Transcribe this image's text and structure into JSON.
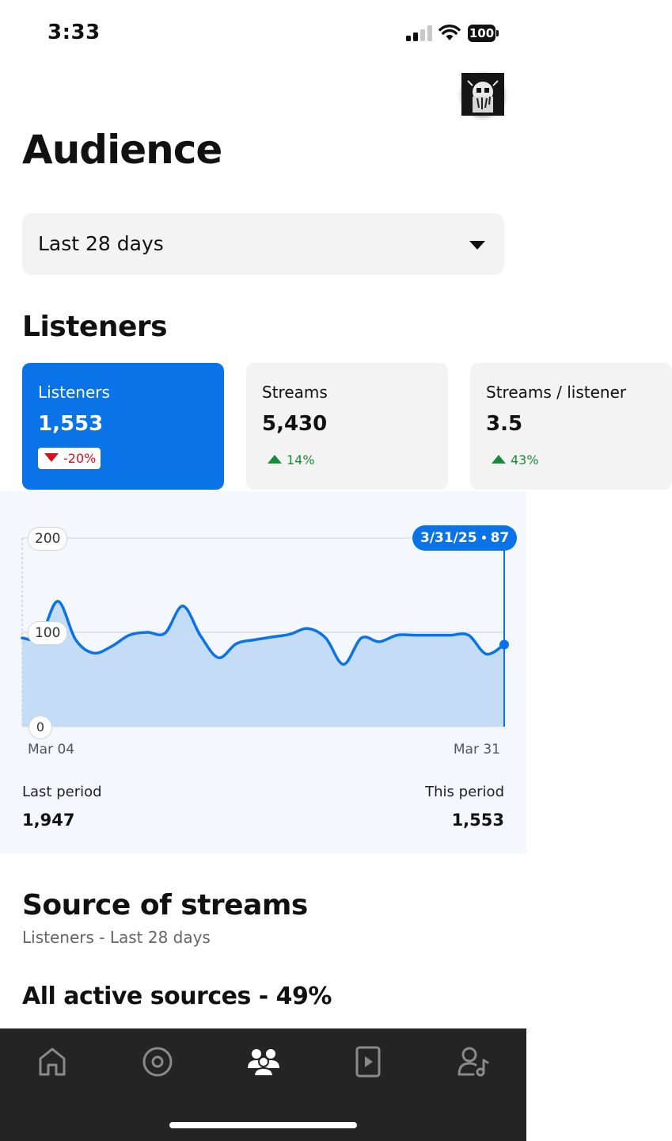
{
  "status_bar": {
    "time": "3:33",
    "battery": "100"
  },
  "header": {
    "title": "Audience",
    "avatar_icon": "profile-avatar-icon"
  },
  "period_select": {
    "value": "Last 28 days"
  },
  "listeners_section": {
    "title": "Listeners",
    "metrics": [
      {
        "label": "Listeners",
        "value": "1,553",
        "change": "-20%",
        "direction": "down",
        "active": true
      },
      {
        "label": "Streams",
        "value": "5,430",
        "change": "14%",
        "direction": "up",
        "active": false
      },
      {
        "label": "Streams / listener",
        "value": "3.5",
        "change": "43%",
        "direction": "up",
        "active": false
      }
    ]
  },
  "chart": {
    "tooltip_date": "3/31/25",
    "tooltip_value": "87",
    "y_ticks": [
      "200",
      "100",
      "0"
    ],
    "x_start": "Mar 04",
    "x_end": "Mar 31",
    "last_period_label": "Last period",
    "last_period_value": "1,947",
    "this_period_label": "This period",
    "this_period_value": "1,553",
    "colors": {
      "line": "#0a73e8",
      "fill": "#c5dcf6"
    }
  },
  "chart_data": {
    "type": "area",
    "x": [
      "Mar 04",
      "Mar 05",
      "Mar 06",
      "Mar 07",
      "Mar 08",
      "Mar 09",
      "Mar 10",
      "Mar 11",
      "Mar 12",
      "Mar 13",
      "Mar 14",
      "Mar 15",
      "Mar 16",
      "Mar 17",
      "Mar 18",
      "Mar 19",
      "Mar 20",
      "Mar 21",
      "Mar 22",
      "Mar 23",
      "Mar 24",
      "Mar 25",
      "Mar 26",
      "Mar 27",
      "Mar 28",
      "Mar 29",
      "Mar 30",
      "Mar 31"
    ],
    "series": [
      {
        "values": [
          94,
          95,
          133,
          92,
          78,
          85,
          97,
          100,
          99,
          128,
          96,
          73,
          88,
          92,
          95,
          98,
          104,
          94,
          66,
          94,
          90,
          97,
          97,
          97,
          97,
          97,
          77,
          87
        ]
      }
    ],
    "ylim": [
      0,
      200
    ],
    "y_ticks": [
      0,
      100,
      200
    ],
    "grid": true,
    "highlight": {
      "x": "Mar 31",
      "y": 87
    }
  },
  "source_section": {
    "title": "Source of streams",
    "subtitle": "Listeners - Last 28 days",
    "active_sources": "All active sources - 49%"
  },
  "bottom_nav": {
    "items": [
      {
        "icon": "home-icon"
      },
      {
        "icon": "music-disc-icon"
      },
      {
        "icon": "audience-icon",
        "active": true
      },
      {
        "icon": "video-play-icon"
      },
      {
        "icon": "artist-profile-icon"
      }
    ]
  }
}
